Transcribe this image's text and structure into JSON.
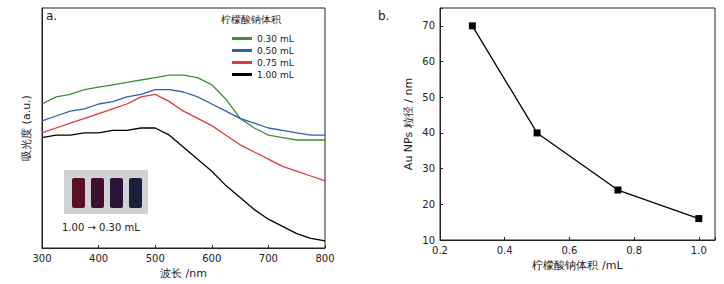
{
  "chart_data": [
    {
      "type": "line",
      "title": "a.",
      "x_label": "波长 /nm",
      "y_label": "吸光度 (a.u.)",
      "x": [
        300,
        325,
        350,
        375,
        400,
        425,
        450,
        475,
        500,
        525,
        550,
        575,
        600,
        625,
        650,
        675,
        700,
        725,
        750,
        775,
        800
      ],
      "series": [
        {
          "name": "0.30 mL",
          "color": "#3a8f3a",
          "values": [
            0.6,
            0.63,
            0.64,
            0.66,
            0.67,
            0.68,
            0.69,
            0.7,
            0.71,
            0.72,
            0.72,
            0.71,
            0.68,
            0.62,
            0.54,
            0.5,
            0.47,
            0.46,
            0.45,
            0.45,
            0.45
          ]
        },
        {
          "name": "0.50 mL",
          "color": "#2f5fae",
          "values": [
            0.53,
            0.55,
            0.57,
            0.58,
            0.6,
            0.61,
            0.63,
            0.64,
            0.66,
            0.66,
            0.65,
            0.63,
            0.6,
            0.57,
            0.54,
            0.52,
            0.5,
            0.49,
            0.48,
            0.47,
            0.47
          ]
        },
        {
          "name": "0.75 mL",
          "color": "#e0393b",
          "values": [
            0.48,
            0.5,
            0.52,
            0.54,
            0.56,
            0.58,
            0.6,
            0.63,
            0.64,
            0.61,
            0.57,
            0.54,
            0.51,
            0.47,
            0.43,
            0.4,
            0.37,
            0.34,
            0.32,
            0.3,
            0.28
          ]
        },
        {
          "name": "1.00 mL",
          "color": "#000000",
          "values": [
            0.46,
            0.47,
            0.47,
            0.48,
            0.48,
            0.49,
            0.49,
            0.5,
            0.5,
            0.47,
            0.42,
            0.37,
            0.32,
            0.26,
            0.21,
            0.16,
            0.12,
            0.09,
            0.06,
            0.04,
            0.03
          ]
        }
      ],
      "legend_title": "柠檬酸钠体积",
      "legend": "upper right",
      "annotation": "1.00 → 0.30 mL",
      "xlim": [
        300,
        800
      ],
      "xticks": [
        300,
        400,
        500,
        600,
        700,
        800
      ],
      "ylim": [
        0,
        1
      ],
      "yticks": [],
      "tick_labels": "x",
      "grid": false
    },
    {
      "type": "line",
      "title": "b.",
      "x_label": "柠檬酸钠体积 /mL",
      "y_label": "Au NPs 粒径 / nm",
      "x": [
        0.3,
        0.5,
        0.75,
        1.0
      ],
      "values": [
        70,
        40,
        24,
        16
      ],
      "color": "#000000",
      "marker": "square",
      "xlim": [
        0.2,
        1.05
      ],
      "xticks": [
        0.2,
        0.4,
        0.6,
        0.8,
        {
          "value": 1,
          "label": "1.0"
        }
      ],
      "ylim": [
        10,
        75
      ],
      "yticks": [
        10,
        20,
        30,
        40,
        50,
        60,
        70
      ],
      "grid": false
    }
  ]
}
